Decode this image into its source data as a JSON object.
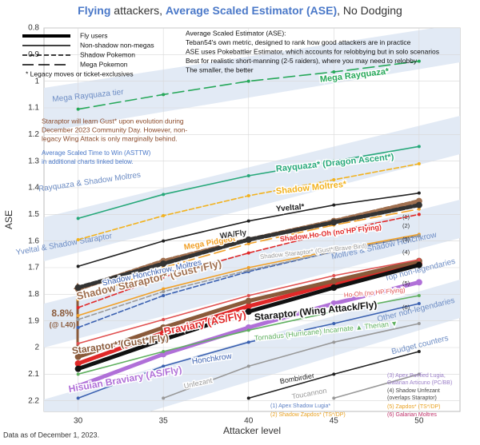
{
  "chart_data": {
    "type": "line",
    "title_parts": [
      "Flying",
      " attackers, ",
      "Average Scaled Estimator (ASE)",
      ", No Dodging"
    ],
    "x_label": "Attacker level",
    "y_label": "ASE",
    "footer": "Data as of December 1, 2023.",
    "x": [
      30,
      35,
      40,
      45,
      50
    ],
    "xlim": [
      28,
      52.4
    ],
    "xticks": [
      30,
      35,
      40,
      45,
      50
    ],
    "ylim": [
      0.8,
      2.24
    ],
    "yticks": [
      0.8,
      0.9,
      1,
      1.1,
      1.2,
      1.3,
      1.4,
      1.5,
      1.6,
      1.7,
      1.8,
      1.9,
      2,
      2.1,
      2.2
    ],
    "y_inverted": true,
    "grid": true,
    "legend": [
      {
        "name": "Fly users",
        "style": "solid",
        "width": "thick"
      },
      {
        "name": "Non-shadow non-megas",
        "style": "solid",
        "width": "thin"
      },
      {
        "name": "Shadow Pokemon",
        "style": "dashed",
        "width": "thin"
      },
      {
        "name": "Mega Pokemon",
        "style": "longdash",
        "width": "thin"
      },
      {
        "name": "*    Legacy moves or ticket-exclusives"
      }
    ],
    "info_lines": [
      "Average Scaled Estimator (ASE):",
      "Teban54's own metric, designed to rank how good attackers are in practice",
      "ASE uses Pokebattler Estimator, which accounts for relobbying but in solo scenarios",
      "Best for realistic short-manning (2-5 raiders), where you may need to relobby",
      "The smaller, the better"
    ],
    "note_lines": [
      "Staraptor will learn Gust* upon evolution during",
      "December 2023 Community Day. However, non-",
      "legacy Wing Attack is only marginally behind."
    ],
    "asttw_lines": [
      "Average Scaled Time to Win (ASTTW)",
      "in additional charts linked below."
    ],
    "gap_label": [
      "8.8%",
      "(@ L40)"
    ],
    "tiers": [
      "Mega Rayquaza tier",
      "Rayquaza & Shadow Moltres",
      "Yveltal & Shadow Staraptor",
      "Moltres & Shadow Honchkrow",
      "Top non-legendaries",
      "Other non-legendaries",
      "Budget counters"
    ],
    "footnote_marks": [
      "(1)",
      "(2)",
      "(3)",
      "(4)",
      "(5)",
      "(6)"
    ],
    "footnotes": [
      {
        "text": "(1) Apex Shadow Lugia*",
        "color": "#5b7fc4"
      },
      {
        "text": "(2) Shadow Zapdos* (TS*/DP)",
        "color": "#e8a020"
      },
      {
        "text": "(3) Apex Purified Lugia,",
        "color": "#9b7fc8"
      },
      {
        "text": "Galarian Articuno (PC/BB)",
        "color": "#9b7fc8"
      },
      {
        "text": "(4) Shadow Unfezant",
        "color": "#444444"
      },
      {
        "text": "(overlaps Staraptor)",
        "color": "#444444"
      },
      {
        "text": "(5) Zapdos* (TS*/DP)",
        "color": "#e8a020"
      },
      {
        "text": "(6) Galarian Moltres",
        "color": "#c0306a"
      }
    ],
    "series": [
      {
        "name": "Mega Rayquaza*",
        "color": "#27a85a",
        "style": "longdash",
        "width": "thin",
        "values": [
          1.105,
          1.05,
          1.0,
          0.965,
          0.925
        ]
      },
      {
        "name": "Rayquaza* (Dragon Ascent*)",
        "color": "#27a87a",
        "style": "solid",
        "width": "thin",
        "values": [
          1.515,
          1.425,
          1.355,
          1.3,
          1.245
        ]
      },
      {
        "name": "Shadow Moltres*",
        "color": "#f2b21e",
        "style": "dashed",
        "width": "thin",
        "values": [
          1.595,
          1.505,
          1.43,
          1.37,
          1.31
        ]
      },
      {
        "name": "Yveltal*",
        "color": "#222222",
        "style": "solid",
        "width": "thin",
        "values": [
          1.695,
          1.6,
          1.525,
          1.465,
          1.42
        ]
      },
      {
        "name": "Shadow Staraptor* (Gust*/Fly)",
        "color": "#a07050",
        "style": "dashed",
        "width": "thick",
        "values": [
          1.78,
          1.675,
          1.595,
          1.525,
          1.45
        ]
      },
      {
        "name": "Mega Pidgeot*",
        "color": "#f0a028",
        "style": "longdash",
        "width": "thin",
        "values": [
          1.82,
          1.7,
          1.61,
          1.54,
          1.48
        ]
      },
      {
        "name": "WA/Fly",
        "color": "#333333",
        "style": "dashed",
        "width": "thick",
        "values": [
          1.775,
          1.685,
          1.595,
          1.53,
          1.465
        ]
      },
      {
        "name": "Shadow Ho-Oh (no HP Flying)",
        "color": "#e02828",
        "style": "dashed",
        "width": "thin",
        "values": [
          1.85,
          1.735,
          1.645,
          1.565,
          1.5
        ]
      },
      {
        "name": "Shadow Honchkrow, Moltres",
        "color": "#3a60b0",
        "style": "dashed",
        "width": "thin",
        "values": [
          1.925,
          1.805,
          1.715,
          1.64,
          1.58
        ]
      },
      {
        "color": "#f0a028",
        "style": "solid",
        "width": "thin",
        "values": [
          1.88,
          1.78,
          1.7,
          1.635,
          1.575
        ]
      },
      {
        "name": "Shadow Staraptor* (Gust*/Brave Bird)",
        "color": "#999999",
        "style": "dashed",
        "width": "thin",
        "values": [
          1.895,
          1.79,
          1.71,
          1.64,
          1.58
        ]
      },
      {
        "name": "Braviary (AS/Fly)",
        "color": "#e02828",
        "style": "solid",
        "width": "thick",
        "values": [
          2.06,
          1.945,
          1.845,
          1.76,
          1.685
        ]
      },
      {
        "name": "Staraptor* (Gust*/Fly)",
        "color": "#8a5a3a",
        "style": "solid",
        "width": "thick",
        "values": [
          2.035,
          1.925,
          1.825,
          1.75,
          1.675
        ]
      },
      {
        "name": "Staraptor (Wing Attack/Fly)",
        "color": "#111111",
        "style": "solid",
        "width": "thick",
        "values": [
          2.08,
          1.97,
          1.865,
          1.775,
          1.69
        ]
      },
      {
        "name": "Hisuian Braviary (AS/Fly)",
        "color": "#b070d8",
        "style": "solid",
        "width": "thick",
        "values": [
          2.145,
          2.025,
          1.925,
          1.835,
          1.755
        ]
      },
      {
        "name": "Ho-Oh (no HP Flying)",
        "color": "#e05050",
        "style": "solid",
        "width": "thin",
        "values": [
          1.985,
          1.895,
          1.805,
          1.73,
          1.67
        ]
      },
      {
        "name": "Tornadus (Hurricane) Incarnate ▲ Therian ▼",
        "color": "#60b060",
        "style": "solid",
        "width": "thin",
        "values": [
          2.1,
          2.015,
          1.935,
          1.865,
          1.805
        ]
      },
      {
        "name": "Honchkrow",
        "color": "#3a60b0",
        "style": "solid",
        "width": "thin",
        "values": [
          2.19,
          2.07,
          1.98,
          1.91,
          1.835
        ]
      },
      {
        "name": "Unfezant",
        "color": "#999999",
        "style": "solid",
        "width": "thin",
        "values": [
          null,
          2.19,
          2.07,
          1.98,
          1.91
        ]
      },
      {
        "name": "Bombirdier",
        "color": "#222222",
        "style": "solid",
        "width": "thin",
        "values": [
          null,
          null,
          2.19,
          2.1,
          2.015
        ]
      },
      {
        "name": "Toucannon",
        "color": "#999999",
        "style": "solid",
        "width": "thin",
        "values": [
          null,
          null,
          null,
          2.19,
          2.1
        ]
      }
    ]
  }
}
